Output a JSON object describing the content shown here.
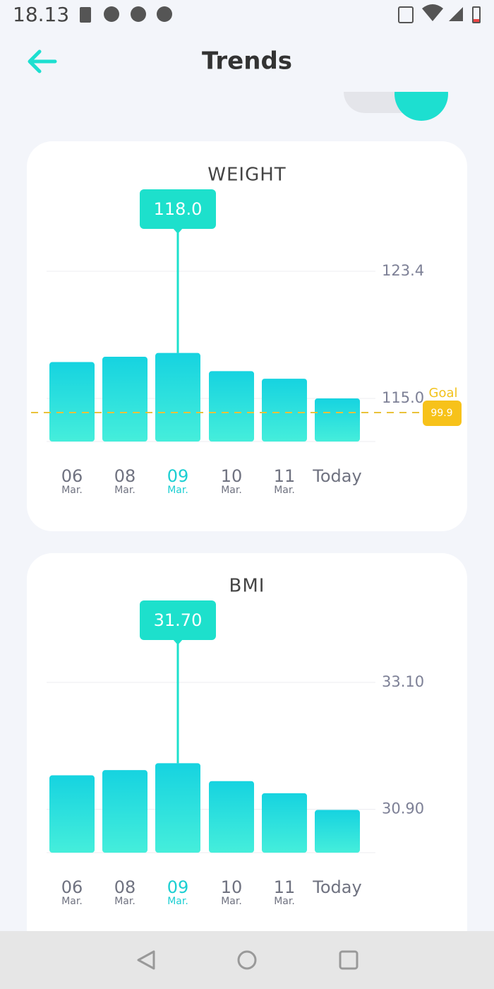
{
  "status_bar": {
    "time": "18.13"
  },
  "header": {
    "title": "Trends"
  },
  "chart_data": [
    {
      "type": "bar",
      "title": "WEIGHT",
      "categories": [
        "06",
        "08",
        "09",
        "10",
        "11",
        "Today"
      ],
      "category_sublabels": [
        "Mar.",
        "Mar.",
        "Mar.",
        "Mar.",
        "Mar.",
        null
      ],
      "values": [
        117.4,
        117.75,
        118.0,
        116.8,
        116.3,
        115.0
      ],
      "highlight": {
        "index": 2,
        "label": "118.0"
      },
      "color": "#16d3e0",
      "highlight_color": "#1ccfd2",
      "ylim": [
        112.15,
        123.4
      ],
      "yticks": [
        {
          "value": 115,
          "label": "115.0"
        },
        123.4
      ],
      "grid": true,
      "goal": {
        "label": "Goal",
        "value": 99.9
      }
    },
    {
      "type": "bar",
      "title": "BMI",
      "categories": [
        "06",
        "08",
        "09",
        "10",
        "11",
        "Today"
      ],
      "category_sublabels": [
        "Mar.",
        "Mar.",
        "Mar.",
        "Mar.",
        "Mar.",
        null
      ],
      "values": [
        31.49,
        31.58,
        31.7,
        31.39,
        31.18,
        30.89
      ],
      "highlight": {
        "index": 2,
        "label": "31.70"
      },
      "color": "#16d3e0",
      "highlight_color": "#1ccfd2",
      "ylim": [
        30.15,
        33.1
      ],
      "yticks": [
        {
          "value": 30.9,
          "label": "30.90"
        },
        {
          "value": 33.1,
          "label": "33.10"
        }
      ],
      "grid": true
    }
  ]
}
